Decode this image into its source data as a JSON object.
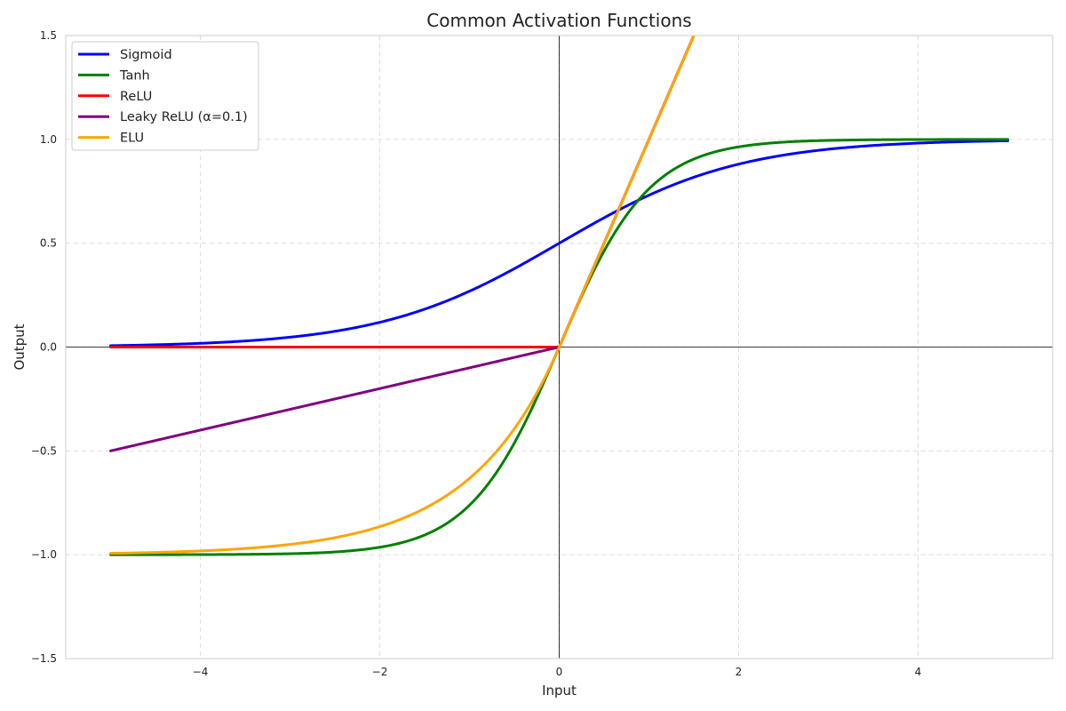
{
  "chart_data": {
    "type": "line",
    "title": "Common Activation Functions",
    "xlabel": "Input",
    "ylabel": "Output",
    "xlim": [
      -5.5,
      5.5
    ],
    "ylim": [
      -1.5,
      1.5
    ],
    "x_ticks": [
      -4,
      -2,
      0,
      2,
      4
    ],
    "x_tick_labels": [
      "−4",
      "−2",
      "0",
      "2",
      "4"
    ],
    "y_ticks": [
      -1.5,
      -1.0,
      -0.5,
      0.0,
      0.5,
      1.0,
      1.5
    ],
    "y_tick_labels": [
      "−1.5",
      "−1.0",
      "−0.5",
      "0.0",
      "0.5",
      "1.0",
      "1.5"
    ],
    "grid": true,
    "grid_style": "dashed",
    "reference_lines": {
      "x": 0,
      "y": 0
    },
    "legend_position": "upper-left",
    "x_domain": [
      -5,
      5
    ],
    "series": [
      {
        "name": "Sigmoid",
        "color": "#0000ff",
        "x": [
          -5,
          -4,
          -3,
          -2,
          -1,
          -0.5,
          0,
          0.5,
          1,
          2,
          3,
          4,
          5
        ],
        "y": [
          0.007,
          0.018,
          0.047,
          0.119,
          0.269,
          0.378,
          0.5,
          0.622,
          0.731,
          0.881,
          0.953,
          0.982,
          0.993
        ]
      },
      {
        "name": "Tanh",
        "color": "#008000",
        "x": [
          -5,
          -3,
          -2,
          -1.5,
          -1,
          -0.5,
          0,
          0.5,
          1,
          1.5,
          2,
          3,
          5
        ],
        "y": [
          -1.0,
          -0.995,
          -0.964,
          -0.905,
          -0.762,
          -0.462,
          0.0,
          0.462,
          0.762,
          0.905,
          0.964,
          0.995,
          1.0
        ]
      },
      {
        "name": "ReLU",
        "color": "#ff0000",
        "x": [
          -5,
          0,
          1.5
        ],
        "y": [
          0,
          0,
          1.5
        ]
      },
      {
        "name": "Leaky ReLU (α=0.1)",
        "color": "#800080",
        "x": [
          -5,
          0,
          1.5
        ],
        "y": [
          -0.5,
          0,
          1.5
        ]
      },
      {
        "name": "ELU",
        "color": "#ffa500",
        "x": [
          -5,
          -4,
          -3,
          -2,
          -1.5,
          -1,
          -0.5,
          -0.25,
          0,
          1.5
        ],
        "y": [
          -0.993,
          -0.982,
          -0.95,
          -0.865,
          -0.777,
          -0.632,
          -0.393,
          -0.221,
          0,
          1.5
        ]
      }
    ]
  }
}
